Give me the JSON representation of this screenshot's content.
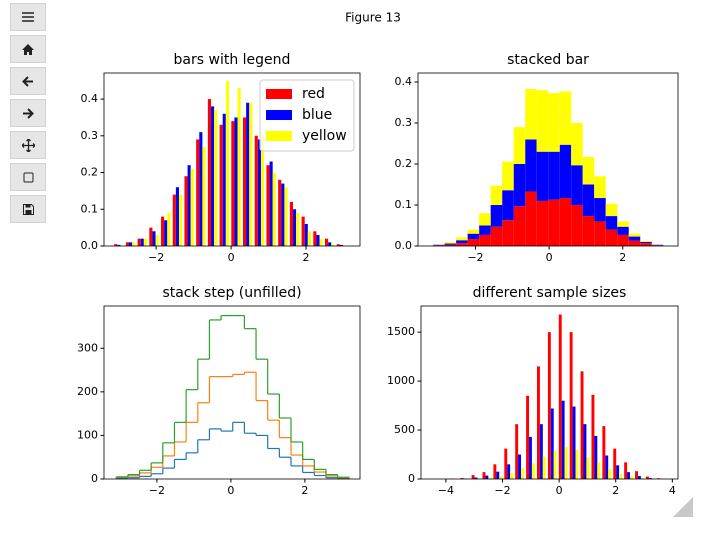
{
  "window": {
    "title": "Figure 13"
  },
  "chart_data": [
    {
      "type": "histogram",
      "histtype": "bar",
      "title": "bars with legend",
      "legend": "upper right",
      "bins": [
        -3.15,
        -2.8375,
        -2.525,
        -2.2125,
        -1.9,
        -1.5875,
        -1.275,
        -0.9625,
        -0.65,
        -0.3375,
        -0.025,
        0.2875,
        0.6,
        0.9125,
        1.225,
        1.5375,
        1.85,
        2.1625,
        2.475,
        2.7875,
        3.1
      ],
      "series": [
        {
          "name": "red",
          "color": "#ff0000",
          "values": [
            0.005,
            0.01,
            0.02,
            0.05,
            0.08,
            0.14,
            0.19,
            0.29,
            0.4,
            0.33,
            0.34,
            0.35,
            0.3,
            0.22,
            0.18,
            0.12,
            0.08,
            0.04,
            0.02,
            0.005
          ]
        },
        {
          "name": "blue",
          "color": "#0000ff",
          "values": [
            0.003,
            0.01,
            0.02,
            0.04,
            0.07,
            0.16,
            0.22,
            0.31,
            0.38,
            0.36,
            0.35,
            0.39,
            0.29,
            0.23,
            0.17,
            0.1,
            0.06,
            0.03,
            0.01,
            0.003
          ]
        },
        {
          "name": "yellow",
          "color": "#ffff00",
          "values": [
            0,
            0.01,
            0.02,
            0.03,
            0.09,
            0.14,
            0.21,
            0.27,
            0.37,
            0.45,
            0.43,
            0.39,
            0.31,
            0.2,
            0.16,
            0.09,
            0.04,
            0.02,
            0.005,
            0
          ]
        }
      ],
      "xlim": [
        -3.39,
        3.44
      ],
      "ylim": [
        0,
        0.471
      ],
      "xticks": [
        {
          "value": -2,
          "label": "−2"
        },
        0,
        2
      ],
      "yticks": [
        {
          "value": 0,
          "label": "0.0"
        },
        0.1,
        0.2,
        0.3,
        0.4
      ]
    },
    {
      "type": "histogram",
      "histtype": "barstacked",
      "title": "stacked bar",
      "bins": [
        -3.15,
        -2.8375,
        -2.525,
        -2.2125,
        -1.9,
        -1.5875,
        -1.275,
        -0.9625,
        -0.65,
        -0.3375,
        -0.025,
        0.2875,
        0.6,
        0.9125,
        1.225,
        1.5375,
        1.85,
        2.1625,
        2.475,
        2.7875,
        3.1
      ],
      "series": [
        {
          "color": "#ff0000",
          "values": [
            0.002,
            0.003,
            0.007,
            0.017,
            0.027,
            0.047,
            0.063,
            0.097,
            0.133,
            0.11,
            0.113,
            0.117,
            0.1,
            0.073,
            0.06,
            0.04,
            0.027,
            0.013,
            0.007,
            0.002
          ]
        },
        {
          "color": "#0000ff",
          "values": [
            0.001,
            0.003,
            0.007,
            0.013,
            0.023,
            0.053,
            0.073,
            0.103,
            0.127,
            0.12,
            0.117,
            0.13,
            0.097,
            0.077,
            0.057,
            0.033,
            0.02,
            0.01,
            0.003,
            0.001
          ]
        },
        {
          "color": "#ffff00",
          "values": [
            0,
            0.003,
            0.007,
            0.01,
            0.03,
            0.047,
            0.07,
            0.09,
            0.123,
            0.15,
            0.143,
            0.13,
            0.103,
            0.067,
            0.053,
            0.03,
            0.013,
            0.007,
            0.002,
            0
          ]
        }
      ],
      "xlim": [
        -3.56,
        3.5
      ],
      "ylim": [
        0,
        0.422
      ],
      "xticks": [
        {
          "value": -2,
          "label": "−2"
        },
        0,
        2
      ],
      "yticks": [
        {
          "value": 0,
          "label": "0.0"
        },
        0.1,
        0.2,
        0.3,
        0.4
      ]
    },
    {
      "type": "histogram",
      "histtype": "step",
      "stacked": true,
      "title": "stack step (unfilled)",
      "bins": [
        -3.1,
        -2.785,
        -2.47,
        -2.155,
        -1.84,
        -1.525,
        -1.21,
        -0.895,
        -0.58,
        -0.265,
        0.05,
        0.365,
        0.68,
        0.995,
        1.31,
        1.625,
        1.94,
        2.255,
        2.57,
        2.885,
        3.2
      ],
      "series": [
        {
          "color": "#1f77b4",
          "values": [
            2,
            3,
            6,
            12,
            25,
            45,
            60,
            90,
            115,
            110,
            130,
            105,
            100,
            70,
            50,
            30,
            15,
            8,
            3,
            1
          ]
        },
        {
          "color": "#ff7f0e",
          "values": [
            2,
            4,
            8,
            15,
            28,
            40,
            70,
            85,
            120,
            125,
            110,
            140,
            80,
            65,
            45,
            25,
            15,
            8,
            4,
            2
          ]
        },
        {
          "color": "#2ca02c",
          "values": [
            1,
            3,
            6,
            10,
            30,
            45,
            75,
            100,
            130,
            140,
            135,
            100,
            95,
            60,
            45,
            30,
            15,
            6,
            3,
            1
          ]
        }
      ],
      "xlim": [
        -3.43,
        3.49
      ],
      "ylim": [
        0,
        397
      ],
      "xticks": [
        {
          "value": -2,
          "label": "−2"
        },
        0,
        2
      ],
      "yticks": [
        0,
        100,
        200,
        300
      ]
    },
    {
      "type": "histogram",
      "histtype": "bar",
      "title": "different sample sizes",
      "bins": [
        -3.9,
        -3.515,
        -3.13,
        -2.745,
        -2.36,
        -1.975,
        -1.59,
        -1.205,
        -0.82,
        -0.435,
        -0.05,
        0.335,
        0.72,
        1.105,
        1.49,
        1.875,
        2.26,
        2.645,
        3.03,
        3.415,
        3.8
      ],
      "series": [
        {
          "color": "#ff0000",
          "values": [
            3,
            10,
            40,
            70,
            150,
            310,
            560,
            850,
            1150,
            1500,
            1680,
            1500,
            1100,
            860,
            540,
            310,
            170,
            80,
            25,
            8
          ]
        },
        {
          "color": "#0000ff",
          "values": [
            2,
            5,
            15,
            35,
            75,
            150,
            250,
            430,
            560,
            720,
            800,
            740,
            560,
            440,
            240,
            140,
            70,
            30,
            10,
            3
          ]
        },
        {
          "color": "#ffff00",
          "values": [
            1,
            2,
            6,
            15,
            30,
            60,
            110,
            160,
            230,
            290,
            330,
            300,
            220,
            170,
            100,
            55,
            30,
            10,
            4,
            1
          ]
        }
      ],
      "xlim": [
        -4.88,
        4.2
      ],
      "ylim": [
        0,
        1767
      ],
      "xticks": [
        {
          "value": -4,
          "label": "−4"
        },
        {
          "value": -2,
          "label": "−2"
        },
        0,
        2,
        4
      ],
      "yticks": [
        0,
        500,
        1000,
        1500
      ]
    }
  ]
}
